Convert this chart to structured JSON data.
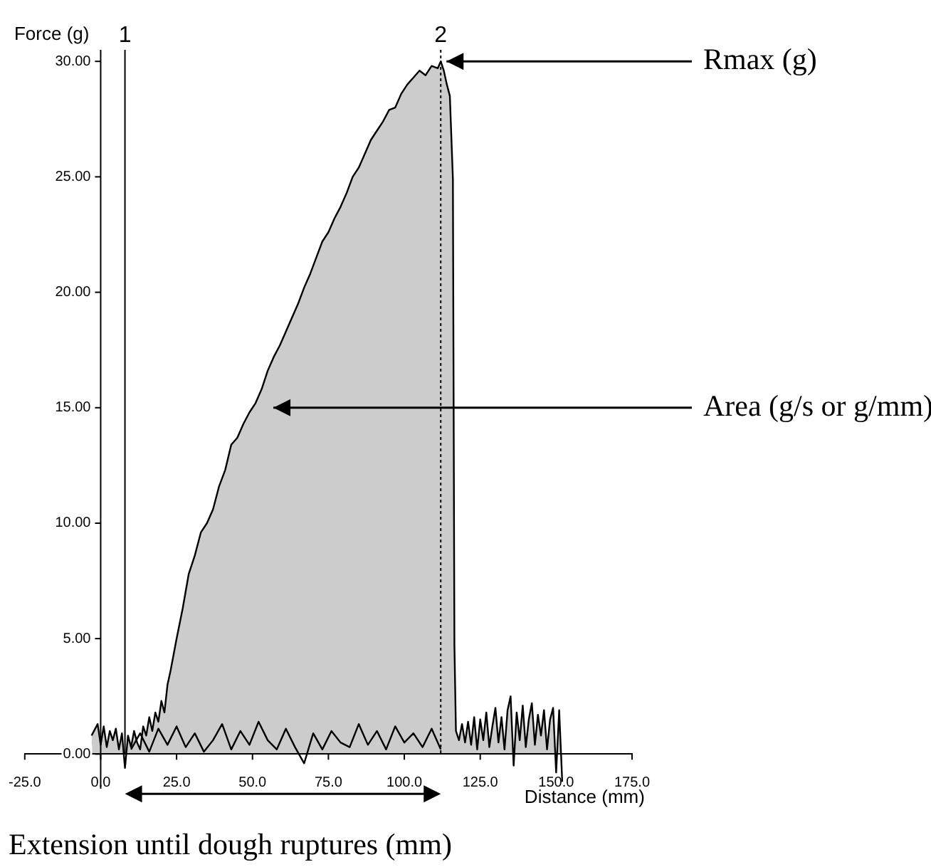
{
  "chart_data": {
    "type": "line",
    "ylabel": "Force (g)",
    "xlabel": "Distance (mm)",
    "xlim": [
      -25,
      175
    ],
    "ylim": [
      -1.5,
      30.5
    ],
    "xticks": [
      {
        "value": -25,
        "label": "-25.0"
      },
      {
        "value": 0,
        "label": "0.0"
      },
      {
        "value": 25,
        "label": "25.0"
      },
      {
        "value": 50,
        "label": "50.0"
      },
      {
        "value": 75,
        "label": "75.0"
      },
      {
        "value": 100,
        "label": "100.0"
      },
      {
        "value": 125,
        "label": "125.0"
      },
      {
        "value": 150,
        "label": "150.0"
      },
      {
        "value": 175,
        "label": "175.0"
      }
    ],
    "yticks": [
      {
        "value": 0,
        "label": "0.00"
      },
      {
        "value": 5,
        "label": "5.00"
      },
      {
        "value": 10,
        "label": "10.00"
      },
      {
        "value": 15,
        "label": "15.00"
      },
      {
        "value": 20,
        "label": "20.00"
      },
      {
        "value": 25,
        "label": "25.00"
      },
      {
        "value": 30,
        "label": "30.00"
      }
    ],
    "legend": false,
    "marker": "none",
    "line_style": "solid",
    "series": [
      {
        "type": "area",
        "color": "#000000",
        "x": [
          -3,
          -1,
          0,
          1,
          2,
          3,
          4,
          5,
          6,
          7,
          8,
          9,
          10,
          11,
          12,
          13,
          14,
          15,
          16,
          17,
          18,
          19,
          20,
          21,
          22,
          23,
          25,
          27,
          29,
          31,
          33,
          35,
          37,
          39,
          41,
          43,
          45,
          47,
          49,
          51,
          53,
          55,
          57,
          59,
          61,
          63,
          65,
          67,
          69,
          71,
          73,
          75,
          77,
          79,
          81,
          83,
          85,
          87,
          89,
          91,
          93,
          95,
          97,
          99,
          101,
          103,
          105,
          107,
          109,
          111,
          112,
          113,
          114,
          115,
          116,
          116.5,
          117,
          118,
          119,
          120,
          121,
          122,
          123,
          124,
          125,
          126,
          127,
          128,
          129,
          130,
          131,
          132,
          133,
          134,
          135,
          136,
          137,
          138,
          139,
          140,
          141,
          142,
          143,
          144,
          145,
          146,
          147,
          148,
          149,
          150,
          151,
          152
        ],
        "values": [
          0.8,
          1.3,
          0.4,
          1.2,
          0.3,
          1.0,
          0.6,
          1.1,
          0.2,
          0.9,
          -0.6,
          0.8,
          0.3,
          1.0,
          0.5,
          0.2,
          1.2,
          0.8,
          1.6,
          1.0,
          1.8,
          1.4,
          2.3,
          1.8,
          3.0,
          3.6,
          5.0,
          6.3,
          7.8,
          8.6,
          9.6,
          10.0,
          10.6,
          11.6,
          12.3,
          13.4,
          13.7,
          14.3,
          14.8,
          15.2,
          15.8,
          16.6,
          17.2,
          17.7,
          18.3,
          18.9,
          19.5,
          20.2,
          20.8,
          21.5,
          22.2,
          22.6,
          23.2,
          23.7,
          24.3,
          25.0,
          25.4,
          26.0,
          26.6,
          27.0,
          27.4,
          27.9,
          28.0,
          28.6,
          29.0,
          29.3,
          29.6,
          29.4,
          29.8,
          29.7,
          30.0,
          29.6,
          29.0,
          28.5,
          24.9,
          4.7,
          1.0,
          0.6,
          1.3,
          0.5,
          1.4,
          0.4,
          1.6,
          0.2,
          1.5,
          0.6,
          1.8,
          0.3,
          1.2,
          2.0,
          0.5,
          1.6,
          0.2,
          1.9,
          2.5,
          -0.5,
          1.8,
          0.6,
          2.1,
          0.3,
          1.5,
          2.2,
          0.4,
          1.7,
          0.8,
          1.9,
          0.2,
          1.5,
          2.0,
          -0.8,
          1.9,
          -1.2
        ]
      },
      {
        "type": "line",
        "color": "#000000",
        "x": [
          10,
          13,
          16,
          19,
          22,
          25,
          28,
          31,
          34,
          37,
          40,
          43,
          46,
          49,
          52,
          55,
          58,
          61,
          64,
          67,
          70,
          73,
          76,
          79,
          82,
          85,
          88,
          91,
          94,
          97,
          100,
          103,
          106,
          109,
          112
        ],
        "values": [
          0.2,
          0.9,
          0.1,
          1.1,
          0.4,
          1.2,
          0.3,
          0.9,
          0.1,
          0.6,
          1.3,
          0.2,
          1.0,
          0.4,
          1.4,
          0.6,
          0.2,
          1.1,
          0.3,
          -0.4,
          0.9,
          0.2,
          1.0,
          0.5,
          0.3,
          1.3,
          0.4,
          1.0,
          0.2,
          1.2,
          0.5,
          0.9,
          0.3,
          1.1,
          0.2
        ]
      }
    ],
    "ref_lines": [
      {
        "axis": "x",
        "value": 8,
        "line_style": "solid"
      },
      {
        "axis": "x",
        "value": 112,
        "line_style": "dotted"
      }
    ],
    "annotations": [
      {
        "text": "1",
        "x": 8,
        "y": 30.5
      },
      {
        "text": "2",
        "x": 112,
        "y": 30.5
      },
      {
        "text": "Rmax (g)",
        "x": 112,
        "y": 30
      },
      {
        "text": "Area (g/s or g/mm)",
        "x": 55,
        "y": 15
      },
      "Extension until dough ruptures (mm)"
    ]
  }
}
